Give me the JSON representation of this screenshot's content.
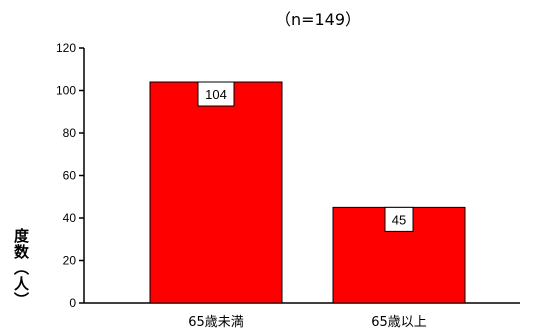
{
  "chart_data": {
    "type": "bar",
    "title": "（n=149）",
    "categories": [
      "65歳未満",
      "65歳以上"
    ],
    "values": [
      104,
      45
    ],
    "ylabel": "度数（人）",
    "xlabel": "",
    "ylim": [
      0,
      120
    ],
    "yticks": [
      0,
      20,
      40,
      60,
      80,
      100,
      120
    ],
    "grid": false,
    "legend": "none",
    "data_labels": [
      "104",
      "45"
    ],
    "bar_color": "#ff0000"
  }
}
